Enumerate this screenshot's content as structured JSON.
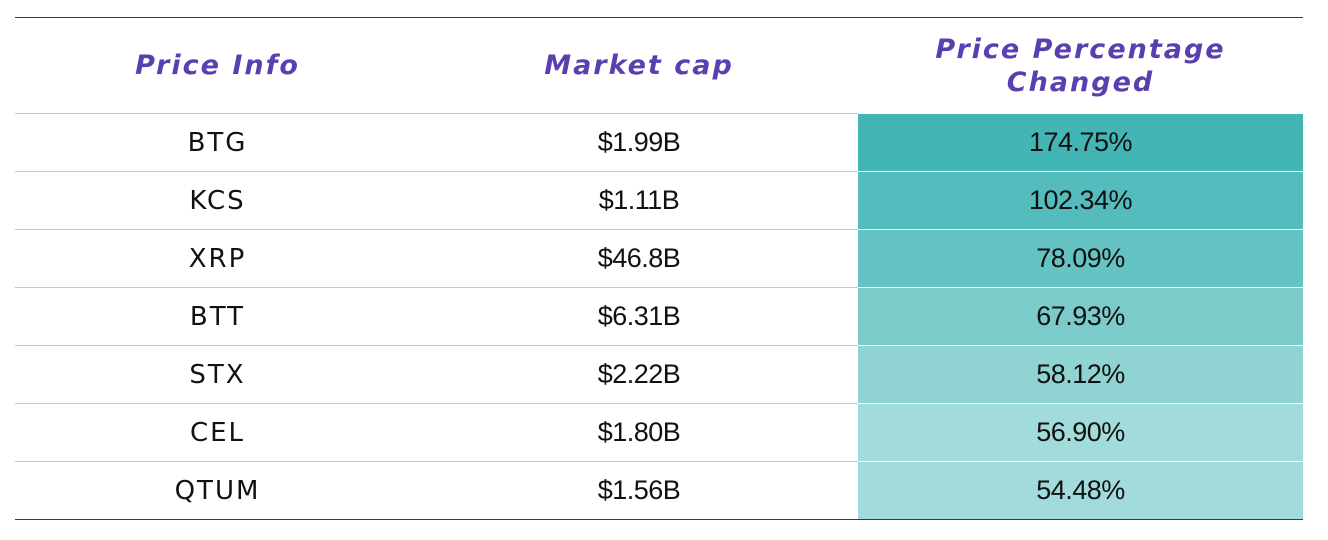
{
  "table": {
    "headers": [
      "Price Info",
      "Market cap",
      "Price Percentage Changed"
    ],
    "rows": [
      [
        "BTG",
        "$1.99B",
        "174.75%"
      ],
      [
        "KCS",
        "$1.11B",
        "102.34%"
      ],
      [
        "XRP",
        "$46.8B",
        "78.09%"
      ],
      [
        "BTT",
        "$6.31B",
        "67.93%"
      ],
      [
        "STX",
        "$2.22B",
        "58.12%"
      ],
      [
        "CEL",
        "$1.80B",
        "56.90%"
      ],
      [
        "QTUM",
        "$1.56B",
        "54.48%"
      ]
    ]
  }
}
